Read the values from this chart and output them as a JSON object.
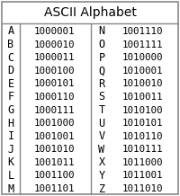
{
  "title": "ASCII Alphabet",
  "left_letters": [
    "A",
    "B",
    "C",
    "D",
    "E",
    "F",
    "G",
    "H",
    "I",
    "J",
    "K",
    "L",
    "M"
  ],
  "left_codes": [
    "1000001",
    "1000010",
    "1000011",
    "1000100",
    "1000101",
    "1000110",
    "1000111",
    "1001000",
    "1001001",
    "1001010",
    "1001011",
    "1001100",
    "1001101"
  ],
  "right_letters": [
    "N",
    "O",
    "P",
    "Q",
    "R",
    "S",
    "T",
    "U",
    "V",
    "W",
    "X",
    "Y",
    "Z"
  ],
  "right_codes": [
    "1001110",
    "1001111",
    "1010000",
    "1010001",
    "1010010",
    "1010011",
    "1010100",
    "1010101",
    "1010110",
    "1010111",
    "1011000",
    "1011001",
    "1011010"
  ],
  "bg_color": "#ffffff",
  "border_color": "#888888",
  "title_fontsize": 10,
  "data_fontsize": 7.8,
  "letter_fontsize": 8.5,
  "font_family": "monospace"
}
